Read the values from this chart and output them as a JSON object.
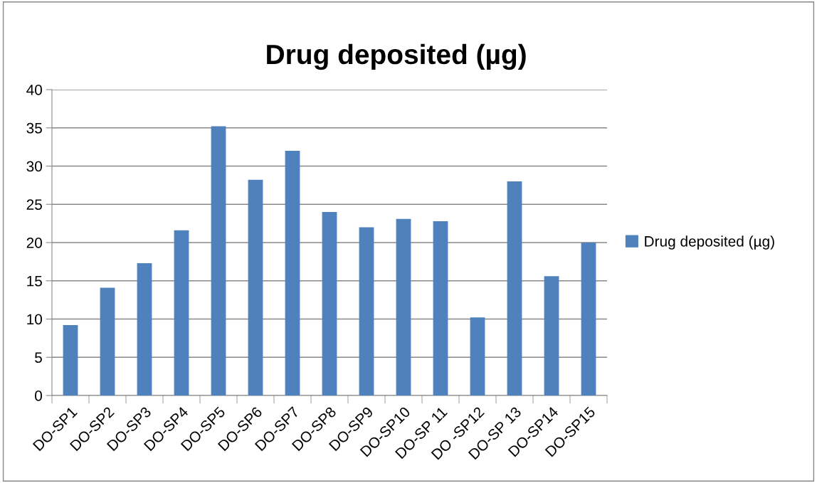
{
  "chart_data": {
    "type": "bar",
    "title": "Drug deposited (µg)",
    "categories": [
      "DO-SP1",
      "DO-SP2",
      "DO-SP3",
      "DO-SP4",
      "DO-SP5",
      "DO-SP6",
      "DO-SP7",
      "DO-SP8",
      "DO-SP9",
      "DO-SP10",
      "DO-SP 11",
      "DO -SP12",
      "DO-SP 13",
      "DO-SP14",
      "DO-SP15"
    ],
    "series": [
      {
        "name": "Drug deposited (µg)",
        "color": "#4f81bd",
        "values": [
          9.2,
          14.1,
          17.3,
          21.6,
          35.2,
          28.2,
          32.0,
          24.0,
          22.0,
          23.1,
          22.8,
          10.2,
          28.0,
          15.6,
          20.0
        ]
      }
    ],
    "ylim": [
      0,
      40
    ],
    "yticks": [
      0,
      5,
      10,
      15,
      20,
      25,
      30,
      35,
      40
    ],
    "grid": "y",
    "legend": "right"
  }
}
